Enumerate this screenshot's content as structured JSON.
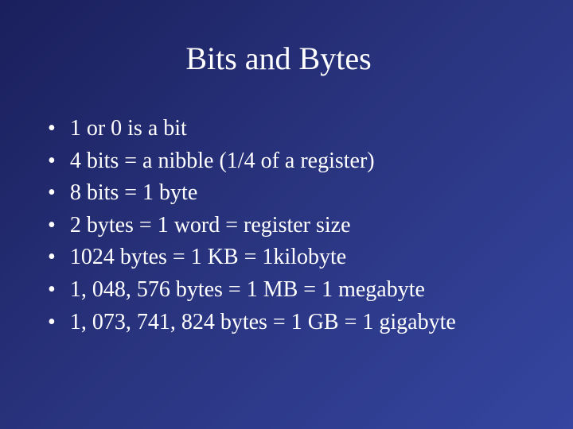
{
  "slide": {
    "title": "Bits and Bytes",
    "background_gradient": [
      "#1a1f5c",
      "#2a3580",
      "#3545a0"
    ],
    "text_color": "#ffffff",
    "font_family": "Times New Roman",
    "title_fontsize": 40,
    "body_fontsize": 28,
    "bullets": [
      "1 or 0 is a bit",
      "4 bits = a nibble (1/4 of a register)",
      "8 bits = 1 byte",
      "2 bytes = 1 word = register size",
      "1024 bytes = 1 KB = 1kilobyte",
      "1, 048, 576 bytes = 1 MB = 1 megabyte",
      "1, 073, 741, 824 bytes = 1 GB = 1 gigabyte"
    ]
  }
}
